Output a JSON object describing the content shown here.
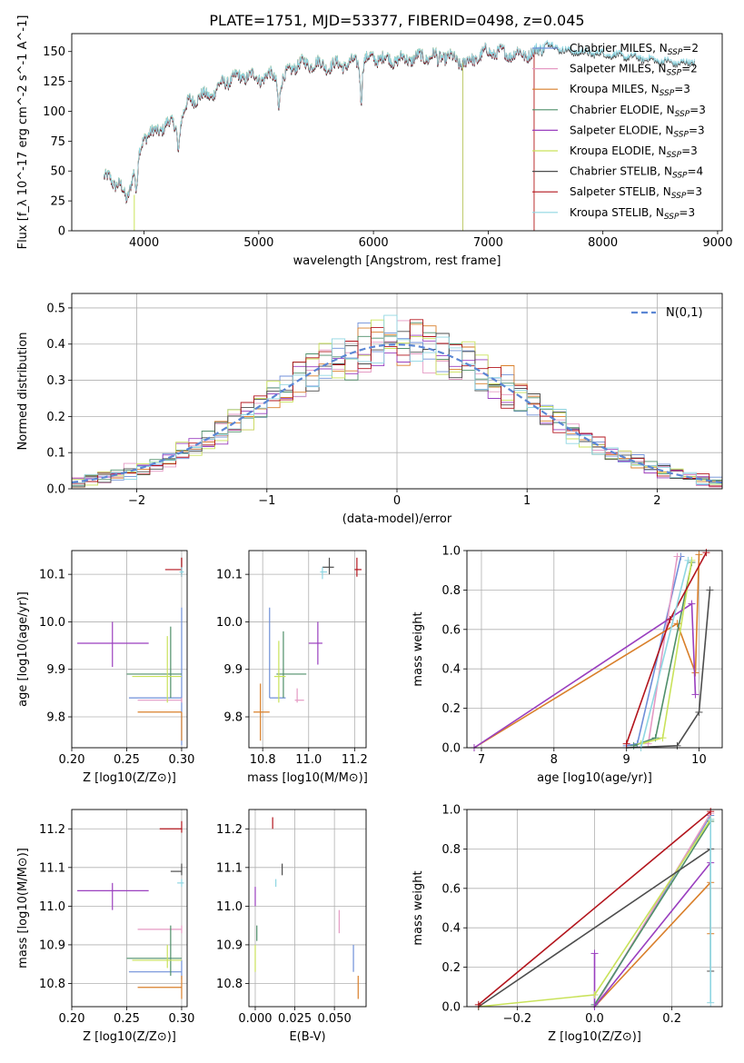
{
  "figure": {
    "title": "PLATE=1751, MJD=53377, FIBERID=0498, z=0.045"
  },
  "legend_entries": [
    {
      "name": "Chabrier MILES, N_SSP=2",
      "base": "Chabrier MILES, N",
      "sub": "SSP",
      "tail": "=2",
      "color": "#6f8fd8"
    },
    {
      "name": "Salpeter MILES, N_SSP=2",
      "base": "Salpeter MILES, N",
      "sub": "SSP",
      "tail": "=2",
      "color": "#e59ac4"
    },
    {
      "name": "Kroupa MILES, N_SSP=3",
      "base": "Kroupa MILES, N",
      "sub": "SSP",
      "tail": "=3",
      "color": "#d97f2a"
    },
    {
      "name": "Chabrier ELODIE, N_SSP=3",
      "base": "Chabrier ELODIE, N",
      "sub": "SSP",
      "tail": "=3",
      "color": "#4f8f6a"
    },
    {
      "name": "Salpeter ELODIE, N_SSP=3",
      "base": "Salpeter ELODIE, N",
      "sub": "SSP",
      "tail": "=3",
      "color": "#9a3fbf"
    },
    {
      "name": "Kroupa ELODIE, N_SSP=3",
      "base": "Kroupa ELODIE, N",
      "sub": "SSP",
      "tail": "=3",
      "color": "#c9e25a"
    },
    {
      "name": "Chabrier STELIB, N_SSP=4",
      "base": "Chabrier STELIB, N",
      "sub": "SSP",
      "tail": "=4",
      "color": "#4d4d4d"
    },
    {
      "name": "Salpeter STELIB, N_SSP=3",
      "base": "Salpeter STELIB, N",
      "sub": "SSP",
      "tail": "=3",
      "color": "#b3151d"
    },
    {
      "name": "Kroupa STELIB, N_SSP=3",
      "base": "Kroupa STELIB, N",
      "sub": "SSP",
      "tail": "=3",
      "color": "#8fd6e2"
    }
  ],
  "chart_data": [
    {
      "id": "spectrum",
      "type": "line",
      "xlabel": "wavelength [Angstrom, rest frame]",
      "ylabel": "Flux [f_λ 10^-17 erg cm^-2 s^-1 A^-1]",
      "xlim": [
        3370,
        9040
      ],
      "ylim": [
        0,
        165
      ],
      "xticks": [
        4000,
        5000,
        6000,
        7000,
        8000,
        9000
      ],
      "yticks": [
        0,
        25,
        50,
        75,
        100,
        125,
        150
      ],
      "continuum_knots": [
        [
          3650,
          42
        ],
        [
          3700,
          48
        ],
        [
          3750,
          38
        ],
        [
          3800,
          36
        ],
        [
          3850,
          28
        ],
        [
          3900,
          45
        ],
        [
          3950,
          62
        ],
        [
          4000,
          80
        ],
        [
          4100,
          82
        ],
        [
          4200,
          90
        ],
        [
          4300,
          88
        ],
        [
          4400,
          110
        ],
        [
          4500,
          112
        ],
        [
          4600,
          115
        ],
        [
          4700,
          125
        ],
        [
          4800,
          128
        ],
        [
          4900,
          130
        ],
        [
          5000,
          128
        ],
        [
          5100,
          130
        ],
        [
          5200,
          125
        ],
        [
          5300,
          138
        ],
        [
          5400,
          140
        ],
        [
          5500,
          140
        ],
        [
          5600,
          138
        ],
        [
          5800,
          140
        ],
        [
          5900,
          142
        ],
        [
          6000,
          145
        ],
        [
          6200,
          143
        ],
        [
          6400,
          145
        ],
        [
          6600,
          147
        ],
        [
          6800,
          140
        ],
        [
          7000,
          150
        ],
        [
          7200,
          148
        ],
        [
          7400,
          148
        ],
        [
          7500,
          157
        ],
        [
          7700,
          150
        ],
        [
          8000,
          148
        ],
        [
          8300,
          145
        ],
        [
          8500,
          142
        ],
        [
          8700,
          140
        ],
        [
          8800,
          142
        ]
      ],
      "absorption_features": [
        [
          3934,
          28
        ],
        [
          4300,
          20
        ],
        [
          5175,
          22
        ],
        [
          5893,
          30
        ],
        [
          6563,
          6
        ]
      ],
      "line_ends": [
        {
          "series": "Chabrier MILES, N_SSP=2",
          "end": 7400
        },
        {
          "series": "Salpeter MILES, N_SSP=2",
          "end": 7400
        },
        {
          "series": "Kroupa MILES, N_SSP=3",
          "end": 7400
        },
        {
          "series": "Chabrier ELODIE, N_SSP=3",
          "end": 6780
        },
        {
          "series": "Salpeter ELODIE, N_SSP=3",
          "end": 6780
        },
        {
          "series": "Kroupa ELODIE, N_SSP=3",
          "end": 6780
        },
        {
          "series": "Chabrier STELIB, N_SSP=4",
          "end": 8800
        },
        {
          "series": "Salpeter STELIB, N_SSP=3",
          "end": 7400
        },
        {
          "series": "Kroupa STELIB, N_SSP=3",
          "end": 8800
        }
      ]
    },
    {
      "id": "residuals",
      "type": "histogram",
      "xlabel": "(data-model)/error",
      "ylabel": "Normed distribution",
      "xlim": [
        -2.5,
        2.5
      ],
      "ylim": [
        0,
        0.54
      ],
      "xticks": [
        -2,
        -1,
        0,
        1,
        2
      ],
      "yticks": [
        0.0,
        0.1,
        0.2,
        0.3,
        0.4,
        0.5
      ],
      "bin_width": 0.1,
      "reference_label": "N(0,1)",
      "reference_color": "#5b86d4"
    },
    {
      "id": "age-vs-Z",
      "type": "scatter",
      "xlabel": "Z [log10(Z/Z⊙)]",
      "ylabel": "age [log10(age/yr)]",
      "xlim": [
        0.2,
        0.305
      ],
      "ylim": [
        9.735,
        10.15
      ],
      "xticks": [
        0.2,
        0.25,
        0.3
      ],
      "yticks": [
        9.8,
        9.9,
        10.0,
        10.1
      ],
      "points": [
        {
          "color": "#6f8fd8",
          "x": 0.3,
          "xlo": 0.252,
          "xhi": 0.3,
          "y": 9.84,
          "ylo": 9.74,
          "yhi": 10.03
        },
        {
          "color": "#e59ac4",
          "x": 0.3,
          "xlo": 0.26,
          "xhi": 0.3,
          "y": 9.835,
          "ylo": 9.83,
          "yhi": 9.84
        },
        {
          "color": "#d97f2a",
          "x": 0.3,
          "xlo": 0.26,
          "xhi": 0.3,
          "y": 9.81,
          "ylo": 9.75,
          "yhi": 9.81
        },
        {
          "color": "#4f8f6a",
          "x": 0.29,
          "xlo": 0.25,
          "xhi": 0.3,
          "y": 9.89,
          "ylo": 9.84,
          "yhi": 9.99
        },
        {
          "color": "#9a3fbf",
          "x": 0.237,
          "xlo": 0.205,
          "xhi": 0.27,
          "y": 9.955,
          "ylo": 9.905,
          "yhi": 10.0
        },
        {
          "color": "#c9e25a",
          "x": 0.287,
          "xlo": 0.255,
          "xhi": 0.3,
          "y": 9.885,
          "ylo": 9.83,
          "yhi": 9.97
        },
        {
          "color": "#4d4d4d",
          "x": 0.3,
          "xlo": 0.3,
          "xhi": 0.3,
          "y": 10.115,
          "ylo": 10.1,
          "yhi": 10.135
        },
        {
          "color": "#b3151d",
          "x": 0.3,
          "xlo": 0.285,
          "xhi": 0.3,
          "y": 10.11,
          "ylo": 10.095,
          "yhi": 10.135
        },
        {
          "color": "#8fd6e2",
          "x": 0.3,
          "xlo": 0.298,
          "xhi": 0.302,
          "y": 10.105,
          "ylo": 10.095,
          "yhi": 10.115
        }
      ]
    },
    {
      "id": "age-vs-mass",
      "type": "scatter",
      "xlabel": "mass [log10(M/M⊙)]",
      "ylabel": "",
      "xlim": [
        10.74,
        11.25
      ],
      "ylim": [
        9.735,
        10.15
      ],
      "xticks": [
        10.8,
        11.0,
        11.2
      ],
      "yticks": [
        9.8,
        9.9,
        10.0,
        10.1
      ],
      "points": [
        {
          "color": "#6f8fd8",
          "x": 10.83,
          "xlo": 10.83,
          "xhi": 10.9,
          "y": 9.84,
          "ylo": 9.84,
          "yhi": 10.03
        },
        {
          "color": "#e59ac4",
          "x": 10.95,
          "xlo": 10.94,
          "xhi": 10.98,
          "y": 9.835,
          "ylo": 9.83,
          "yhi": 9.86
        },
        {
          "color": "#d97f2a",
          "x": 10.79,
          "xlo": 10.76,
          "xhi": 10.83,
          "y": 9.81,
          "ylo": 9.75,
          "yhi": 9.87
        },
        {
          "color": "#4f8f6a",
          "x": 10.89,
          "xlo": 10.86,
          "xhi": 10.99,
          "y": 9.89,
          "ylo": 9.84,
          "yhi": 9.98
        },
        {
          "color": "#9a3fbf",
          "x": 11.04,
          "xlo": 11.0,
          "xhi": 11.06,
          "y": 9.955,
          "ylo": 9.91,
          "yhi": 10.0
        },
        {
          "color": "#c9e25a",
          "x": 10.87,
          "xlo": 10.85,
          "xhi": 10.9,
          "y": 9.885,
          "ylo": 9.83,
          "yhi": 9.96
        },
        {
          "color": "#4d4d4d",
          "x": 11.09,
          "xlo": 11.06,
          "xhi": 11.11,
          "y": 10.115,
          "ylo": 10.1,
          "yhi": 10.135
        },
        {
          "color": "#b3151d",
          "x": 11.21,
          "xlo": 11.2,
          "xhi": 11.23,
          "y": 10.11,
          "ylo": 10.095,
          "yhi": 10.135
        },
        {
          "color": "#8fd6e2",
          "x": 11.06,
          "xlo": 11.05,
          "xhi": 11.08,
          "y": 10.105,
          "ylo": 10.09,
          "yhi": 10.115
        }
      ]
    },
    {
      "id": "massweight-vs-age",
      "type": "line",
      "xlabel": "age [log10(age/yr)]",
      "ylabel": "mass weight",
      "xlim": [
        6.8,
        10.32
      ],
      "ylim": [
        0,
        1.0
      ],
      "xticks": [
        7,
        8,
        9,
        10
      ],
      "yticks": [
        0.0,
        0.2,
        0.4,
        0.6,
        0.8,
        1.0
      ],
      "series": [
        {
          "color": "#6f8fd8",
          "points": [
            [
              9.0,
              0.01
            ],
            [
              9.15,
              0.02
            ],
            [
              9.75,
              0.97
            ]
          ]
        },
        {
          "color": "#e59ac4",
          "points": [
            [
              9.3,
              0.02
            ],
            [
              9.7,
              0.97
            ]
          ]
        },
        {
          "color": "#d97f2a",
          "points": [
            [
              6.9,
              0.0
            ],
            [
              9.7,
              0.63
            ],
            [
              9.95,
              0.38
            ],
            [
              10.0,
              0.98
            ]
          ]
        },
        {
          "color": "#4f8f6a",
          "points": [
            [
              9.1,
              0.01
            ],
            [
              9.4,
              0.05
            ],
            [
              9.9,
              0.94
            ]
          ]
        },
        {
          "color": "#9a3fbf",
          "points": [
            [
              6.9,
              0.0
            ],
            [
              9.9,
              0.73
            ],
            [
              9.95,
              0.27
            ]
          ]
        },
        {
          "color": "#c9e25a",
          "points": [
            [
              9.2,
              0.02
            ],
            [
              9.5,
              0.05
            ],
            [
              9.9,
              0.95
            ]
          ]
        },
        {
          "color": "#4d4d4d",
          "points": [
            [
              9.0,
              0.0
            ],
            [
              9.7,
              0.01
            ],
            [
              10.0,
              0.18
            ],
            [
              10.15,
              0.8
            ]
          ]
        },
        {
          "color": "#b3151d",
          "points": [
            [
              9.0,
              0.02
            ],
            [
              9.6,
              0.65
            ],
            [
              10.1,
              0.99
            ]
          ]
        },
        {
          "color": "#8fd6e2",
          "points": [
            [
              9.2,
              0.0
            ],
            [
              9.85,
              0.95
            ]
          ]
        }
      ]
    },
    {
      "id": "mass-vs-Z",
      "type": "scatter",
      "xlabel": "Z [log10(Z/Z⊙)]",
      "ylabel": "mass [log10(M/M⊙)]",
      "xlim": [
        0.2,
        0.305
      ],
      "ylim": [
        10.74,
        11.25
      ],
      "xticks": [
        0.2,
        0.25,
        0.3
      ],
      "yticks": [
        10.8,
        10.9,
        11.0,
        11.1,
        11.2
      ],
      "points": [
        {
          "color": "#6f8fd8",
          "x": 0.3,
          "xlo": 0.252,
          "xhi": 0.3,
          "y": 10.83,
          "ylo": 10.81,
          "yhi": 10.86
        },
        {
          "color": "#e59ac4",
          "x": 0.3,
          "xlo": 0.26,
          "xhi": 0.3,
          "y": 10.94,
          "ylo": 10.93,
          "yhi": 10.95
        },
        {
          "color": "#d97f2a",
          "x": 0.3,
          "xlo": 0.26,
          "xhi": 0.3,
          "y": 10.79,
          "ylo": 10.76,
          "yhi": 10.82
        },
        {
          "color": "#4f8f6a",
          "x": 0.29,
          "xlo": 0.25,
          "xhi": 0.3,
          "y": 10.865,
          "ylo": 10.82,
          "yhi": 10.95
        },
        {
          "color": "#9a3fbf",
          "x": 0.237,
          "xlo": 0.205,
          "xhi": 0.27,
          "y": 11.04,
          "ylo": 10.99,
          "yhi": 11.06
        },
        {
          "color": "#c9e25a",
          "x": 0.287,
          "xlo": 0.255,
          "xhi": 0.3,
          "y": 10.86,
          "ylo": 10.84,
          "yhi": 10.9
        },
        {
          "color": "#4d4d4d",
          "x": 0.3,
          "xlo": 0.29,
          "xhi": 0.3,
          "y": 11.09,
          "ylo": 11.08,
          "yhi": 11.11
        },
        {
          "color": "#b3151d",
          "x": 0.3,
          "xlo": 0.28,
          "xhi": 0.3,
          "y": 11.2,
          "ylo": 11.19,
          "yhi": 11.22
        },
        {
          "color": "#8fd6e2",
          "x": 0.3,
          "xlo": 0.296,
          "xhi": 0.302,
          "y": 11.06,
          "ylo": 11.05,
          "yhi": 11.07
        }
      ]
    },
    {
      "id": "mass-vs-ebv",
      "type": "scatter",
      "xlabel": "E(B-V)",
      "ylabel": "",
      "xlim": [
        -0.004,
        0.07
      ],
      "ylim": [
        10.74,
        11.25
      ],
      "xticks": [
        0.0,
        0.025,
        0.05
      ],
      "yticks": [
        10.8,
        10.9,
        11.0,
        11.1,
        11.2
      ],
      "points": [
        {
          "color": "#6f8fd8",
          "x": 0.062,
          "xlo": 0.062,
          "xhi": 0.062,
          "y": 10.86,
          "ylo": 10.83,
          "yhi": 10.9
        },
        {
          "color": "#e59ac4",
          "x": 0.053,
          "xlo": 0.053,
          "xhi": 0.053,
          "y": 10.96,
          "ylo": 10.93,
          "yhi": 10.99
        },
        {
          "color": "#d97f2a",
          "x": 0.065,
          "xlo": 0.065,
          "xhi": 0.065,
          "y": 10.79,
          "ylo": 10.76,
          "yhi": 10.82
        },
        {
          "color": "#4f8f6a",
          "x": 0.001,
          "xlo": 0.001,
          "xhi": 0.001,
          "y": 10.93,
          "ylo": 10.91,
          "yhi": 10.95
        },
        {
          "color": "#9a3fbf",
          "x": 0.0,
          "xlo": 0.0,
          "xhi": 0.0,
          "y": 11.03,
          "ylo": 11.0,
          "yhi": 11.05
        },
        {
          "color": "#c9e25a",
          "x": 0.0,
          "xlo": 0.0,
          "xhi": 0.0,
          "y": 10.86,
          "ylo": 10.83,
          "yhi": 10.9
        },
        {
          "color": "#4d4d4d",
          "x": 0.017,
          "xlo": 0.017,
          "xhi": 0.017,
          "y": 11.09,
          "ylo": 11.08,
          "yhi": 11.11
        },
        {
          "color": "#b3151d",
          "x": 0.011,
          "xlo": 0.011,
          "xhi": 0.011,
          "y": 11.21,
          "ylo": 11.2,
          "yhi": 11.23
        },
        {
          "color": "#8fd6e2",
          "x": 0.013,
          "xlo": 0.013,
          "xhi": 0.013,
          "y": 11.06,
          "ylo": 11.05,
          "yhi": 11.07
        }
      ]
    },
    {
      "id": "massweight-vs-Z",
      "type": "line",
      "xlabel": "Z [log10(Z/Z⊙)]",
      "ylabel": "mass weight",
      "xlim": [
        -0.33,
        0.33
      ],
      "ylim": [
        0,
        1.0
      ],
      "xticks": [
        -0.2,
        0.0,
        0.2
      ],
      "yticks": [
        0.0,
        0.2,
        0.4,
        0.6,
        0.8,
        1.0
      ],
      "series": [
        {
          "color": "#6f8fd8",
          "points": [
            [
              0.0,
              0.0
            ],
            [
              0.3,
              0.97
            ]
          ]
        },
        {
          "color": "#e59ac4",
          "points": [
            [
              0.0,
              0.0
            ],
            [
              0.3,
              0.98
            ]
          ]
        },
        {
          "color": "#d97f2a",
          "points": [
            [
              0.0,
              0.0
            ],
            [
              0.3,
              0.63
            ],
            [
              0.3,
              0.37
            ]
          ]
        },
        {
          "color": "#4f8f6a",
          "points": [
            [
              0.0,
              0.01
            ],
            [
              0.3,
              0.94
            ]
          ]
        },
        {
          "color": "#9a3fbf",
          "points": [
            [
              0.0,
              0.27
            ],
            [
              0.0,
              0.0
            ],
            [
              0.3,
              0.73
            ]
          ]
        },
        {
          "color": "#c9e25a",
          "points": [
            [
              -0.3,
              0.0
            ],
            [
              0.0,
              0.06
            ],
            [
              0.3,
              0.95
            ]
          ]
        },
        {
          "color": "#4d4d4d",
          "points": [
            [
              -0.3,
              0.0
            ],
            [
              0.3,
              0.8
            ],
            [
              0.3,
              0.18
            ]
          ]
        },
        {
          "color": "#b3151d",
          "points": [
            [
              -0.3,
              0.01
            ],
            [
              0.3,
              0.99
            ]
          ]
        },
        {
          "color": "#8fd6e2",
          "points": [
            [
              0.3,
              0.02
            ],
            [
              0.3,
              0.95
            ]
          ]
        }
      ]
    }
  ]
}
